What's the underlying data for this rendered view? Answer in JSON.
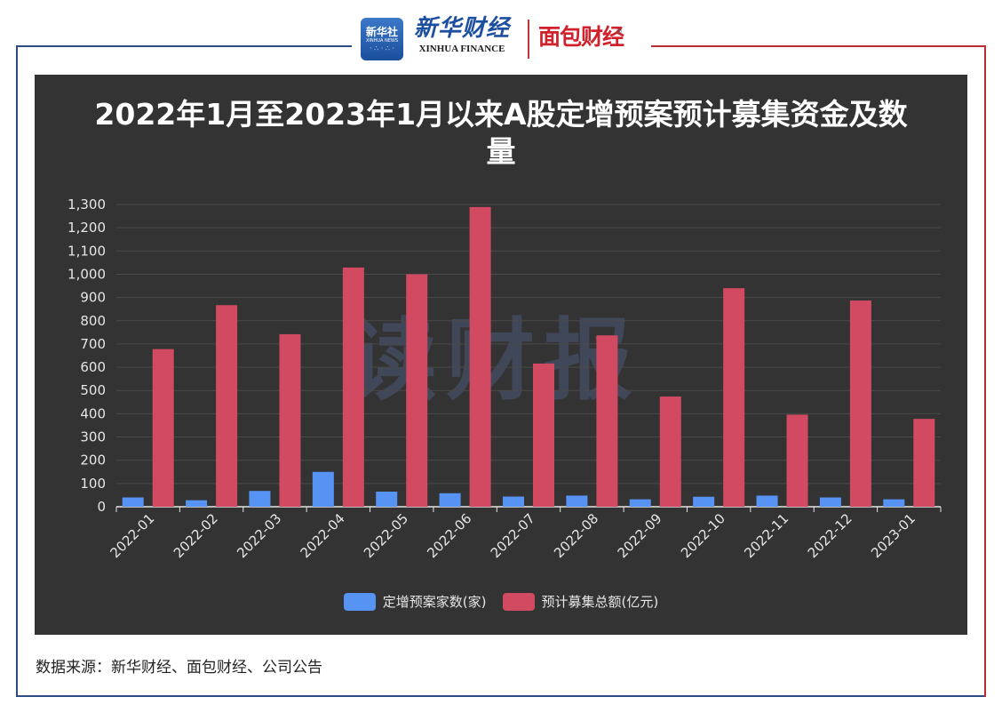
{
  "header": {
    "xinhua_badge_cn": "新华社",
    "xinhua_badge_en": "XINHUA NEWS",
    "xinhua_finance_cn": "新华财经",
    "xinhua_finance_en": "XINHUA FINANCE",
    "mianbao_logo": "面包财经",
    "registered_mark": "®"
  },
  "watermark": "读财报",
  "source_text": "数据来源：新华财经、面包财经、公司公告",
  "colors": {
    "panel_bg": "#333333",
    "series_count": "#5793f3",
    "series_amount": "#d14a61"
  },
  "chart_data": {
    "type": "bar",
    "title": "2022年1月至2023年1月以来A股定增预案预计募集资金及数量",
    "categories": [
      "2022-01",
      "2022-02",
      "2022-03",
      "2022-04",
      "2022-05",
      "2022-06",
      "2022-07",
      "2022-08",
      "2022-09",
      "2022-10",
      "2022-11",
      "2022-12",
      "2023-01"
    ],
    "series": [
      {
        "name": "定增预案家数(家)",
        "values": [
          40,
          28,
          68,
          150,
          65,
          58,
          44,
          48,
          32,
          43,
          48,
          40,
          32
        ]
      },
      {
        "name": "预计募集总额(亿元)",
        "values": [
          678,
          867,
          742,
          1029,
          1000,
          1289,
          616,
          737,
          474,
          940,
          396,
          887,
          378
        ]
      }
    ],
    "yticks": [
      "0",
      "100",
      "200",
      "300",
      "400",
      "500",
      "600",
      "700",
      "800",
      "900",
      "1,000",
      "1,100",
      "1,200",
      "1,300"
    ],
    "ylim": [
      0,
      1300
    ],
    "grid": true,
    "legend_position": "bottom"
  }
}
